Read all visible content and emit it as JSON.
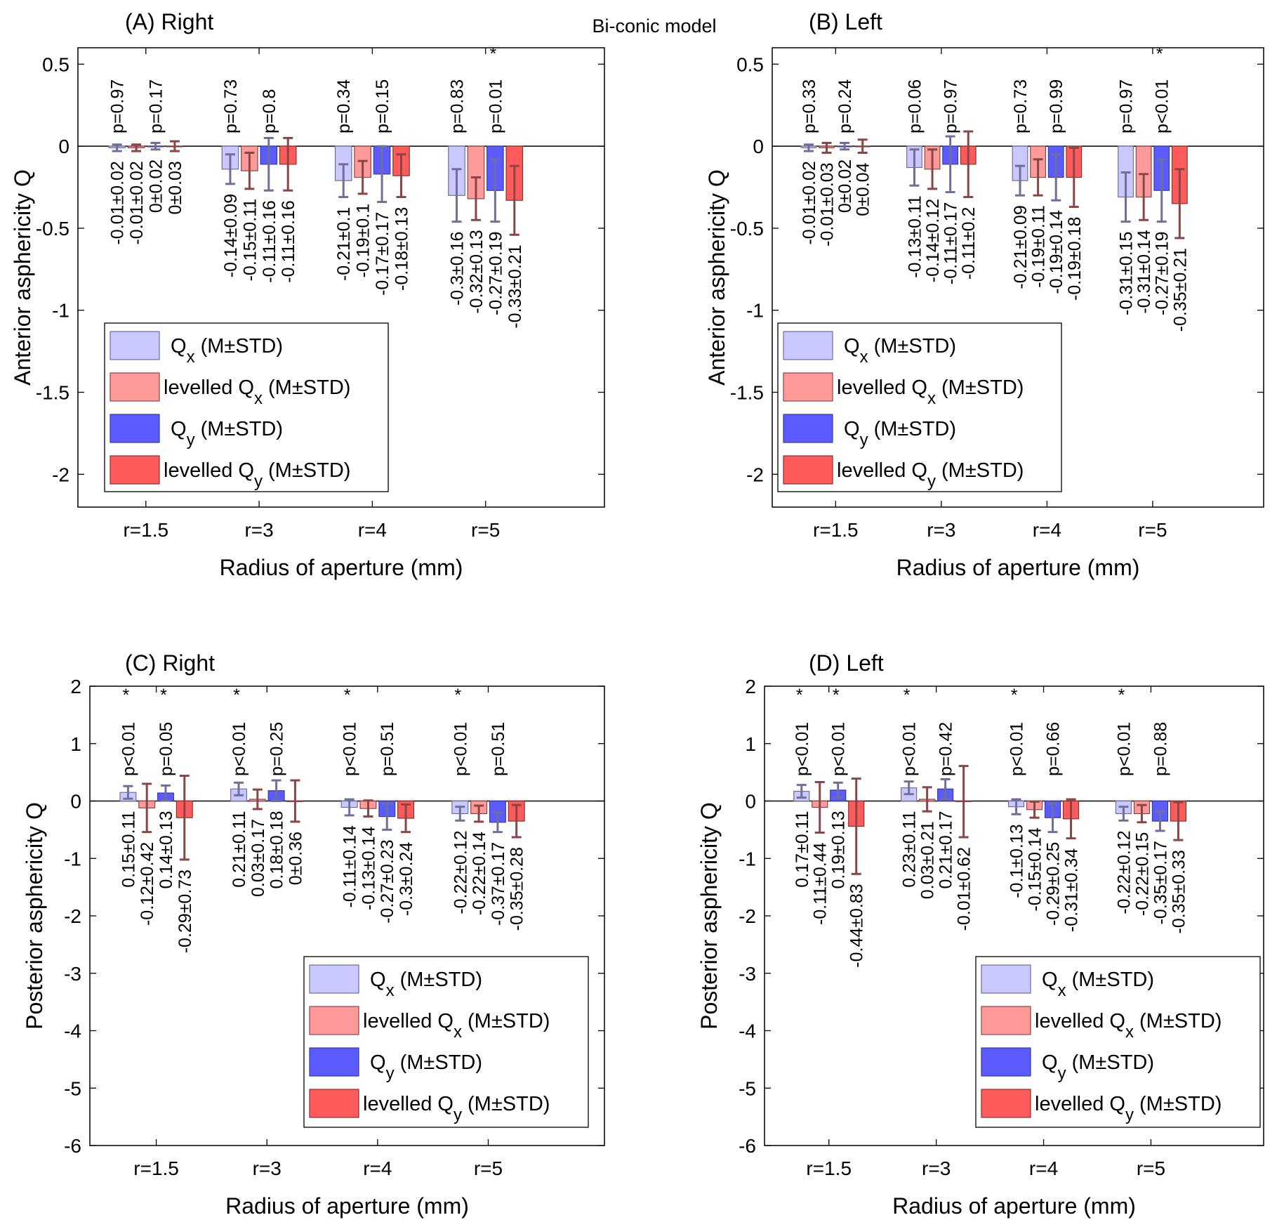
{
  "figure": {
    "title": "Bi-conic model",
    "colors": {
      "qx": "#c9c9ff",
      "lqx": "#ff9a9a",
      "qy": "#5b5bff",
      "lqy": "#ff5b5b",
      "err_x": "#6f6f9a",
      "err_lev": "#8a4545",
      "zero_line": "#000000",
      "frame": "#000000"
    }
  },
  "chart_data": [
    {
      "type": "bar",
      "title": "(A) Right",
      "xlabel": "Radius of aperture (mm)",
      "ylabel": "Anterior asphericity Q",
      "ylim": [
        -2.2,
        0.6
      ],
      "yticks": [
        0.5,
        0,
        -0.5,
        -1,
        -1.5,
        -2
      ],
      "ytick_labels": [
        "0.5",
        "0",
        "-0.5",
        "-1",
        "-1.5",
        "-2"
      ],
      "categories": [
        "r=1.5",
        "r=3",
        "r=4",
        "r=5"
      ],
      "series": [
        {
          "name": "Qx (M±STD)",
          "values": [
            -0.01,
            -0.14,
            -0.21,
            -0.3
          ],
          "std": [
            0.02,
            0.09,
            0.1,
            0.16
          ]
        },
        {
          "name": "levelled Qx (M±STD)",
          "values": [
            -0.01,
            -0.15,
            -0.19,
            -0.32
          ],
          "std": [
            0.02,
            0.11,
            0.1,
            0.13
          ]
        },
        {
          "name": "Qy (M±STD)",
          "values": [
            0,
            -0.11,
            -0.17,
            -0.27
          ],
          "std": [
            0.02,
            0.16,
            0.17,
            0.19
          ]
        },
        {
          "name": "levelled Qy (M±STD)",
          "values": [
            0,
            -0.11,
            -0.18,
            -0.33
          ],
          "std": [
            0.03,
            0.16,
            0.13,
            0.21
          ]
        }
      ],
      "bar_labels": [
        [
          "-0.01±0.02",
          "-0.01±0.02",
          "0±0.02",
          "0±0.03"
        ],
        [
          "-0.14±0.09",
          "-0.15±0.11",
          "-0.11±0.16",
          "-0.11±0.16"
        ],
        [
          "-0.21±0.1",
          "-0.19±0.1",
          "-0.17±0.17",
          "-0.18±0.13"
        ],
        [
          "-0.3±0.16",
          "-0.32±0.13",
          "-0.27±0.19",
          "-0.33±0.21"
        ]
      ],
      "p_values": [
        [
          "p=0.97",
          "p=0.17"
        ],
        [
          "p=0.73",
          "p=0.8"
        ],
        [
          "p=0.34",
          "p=0.15"
        ],
        [
          "p=0.83",
          "p=0.01"
        ]
      ],
      "significant": [
        [
          false,
          false
        ],
        [
          false,
          false
        ],
        [
          false,
          false
        ],
        [
          false,
          true
        ]
      ],
      "star": "*",
      "legend": {
        "placement": "lower-left",
        "entries": [
          {
            "main": "Q",
            "sub": "x",
            "tail": " (M±STD)"
          },
          {
            "main": "levelled Q",
            "sub": "x",
            "tail": " (M±STD)"
          },
          {
            "main": "Q",
            "sub": "y",
            "tail": " (M±STD)"
          },
          {
            "main": "levelled Q",
            "sub": "y",
            "tail": " (M±STD)"
          }
        ]
      }
    },
    {
      "type": "bar",
      "title": "(B) Left",
      "xlabel": "Radius of aperture (mm)",
      "ylabel": "Anterior asphericity Q",
      "ylim": [
        -2.2,
        0.6
      ],
      "yticks": [
        0.5,
        0,
        -0.5,
        -1,
        -1.5,
        -2
      ],
      "ytick_labels": [
        "0.5",
        "0",
        "-0.5",
        "-1",
        "-1.5",
        "-2"
      ],
      "categories": [
        "r=1.5",
        "r=3",
        "r=4",
        "r=5"
      ],
      "series": [
        {
          "name": "Qx (M±STD)",
          "values": [
            -0.01,
            -0.13,
            -0.21,
            -0.31
          ],
          "std": [
            0.02,
            0.11,
            0.09,
            0.15
          ]
        },
        {
          "name": "levelled Qx (M±STD)",
          "values": [
            -0.01,
            -0.14,
            -0.19,
            -0.31
          ],
          "std": [
            0.03,
            0.12,
            0.11,
            0.14
          ]
        },
        {
          "name": "Qy (M±STD)",
          "values": [
            0,
            -0.11,
            -0.19,
            -0.27
          ],
          "std": [
            0.02,
            0.17,
            0.14,
            0.19
          ]
        },
        {
          "name": "levelled Qy (M±STD)",
          "values": [
            0,
            -0.11,
            -0.19,
            -0.35
          ],
          "std": [
            0.04,
            0.2,
            0.18,
            0.21
          ]
        }
      ],
      "bar_labels": [
        [
          "-0.01±0.02",
          "-0.01±0.03",
          "0±0.02",
          "0±0.04"
        ],
        [
          "-0.13±0.11",
          "-0.14±0.12",
          "-0.11±0.17",
          "-0.11±0.2"
        ],
        [
          "-0.21±0.09",
          "-0.19±0.11",
          "-0.19±0.14",
          "-0.19±0.18"
        ],
        [
          "-0.31±0.15",
          "-0.31±0.14",
          "-0.27±0.19",
          "-0.35±0.21"
        ]
      ],
      "p_values": [
        [
          "p=0.33",
          "p=0.24"
        ],
        [
          "p=0.06",
          "p=0.97"
        ],
        [
          "p=0.73",
          "p=0.99"
        ],
        [
          "p=0.97",
          "p<0.01"
        ]
      ],
      "significant": [
        [
          false,
          false
        ],
        [
          false,
          false
        ],
        [
          false,
          false
        ],
        [
          false,
          true
        ]
      ],
      "star": "*",
      "legend": {
        "placement": "lower-left",
        "entries": [
          {
            "main": "Q",
            "sub": "x",
            "tail": " (M±STD)"
          },
          {
            "main": "levelled Q",
            "sub": "x",
            "tail": " (M±STD)"
          },
          {
            "main": "Q",
            "sub": "y",
            "tail": " (M±STD)"
          },
          {
            "main": "levelled Q",
            "sub": "y",
            "tail": " (M±STD)"
          }
        ]
      }
    },
    {
      "type": "bar",
      "title": "(C) Right",
      "xlabel": "Radius of aperture (mm)",
      "ylabel": "Posterior asphericity Q",
      "ylim": [
        -6,
        2
      ],
      "yticks": [
        2,
        1,
        0,
        -1,
        -2,
        -3,
        -4,
        -5,
        -6
      ],
      "ytick_labels": [
        "2",
        "1",
        "0",
        "-1",
        "-2",
        "-3",
        "-4",
        "-5",
        "-6"
      ],
      "categories": [
        "r=1.5",
        "r=3",
        "r=4",
        "r=5"
      ],
      "series": [
        {
          "name": "Qx (M±STD)",
          "values": [
            0.15,
            0.21,
            -0.11,
            -0.22
          ],
          "std": [
            0.11,
            0.11,
            0.14,
            0.12
          ]
        },
        {
          "name": "levelled Qx (M±STD)",
          "values": [
            -0.12,
            0.03,
            -0.13,
            -0.22
          ],
          "std": [
            0.42,
            0.17,
            0.14,
            0.14
          ]
        },
        {
          "name": "Qy (M±STD)",
          "values": [
            0.14,
            0.18,
            -0.27,
            -0.37
          ],
          "std": [
            0.13,
            0.18,
            0.23,
            0.17
          ]
        },
        {
          "name": "levelled Qy (M±STD)",
          "values": [
            -0.29,
            0,
            -0.3,
            -0.35
          ],
          "std": [
            0.73,
            0.36,
            0.24,
            0.28
          ]
        }
      ],
      "bar_labels": [
        [
          "0.15±0.11",
          "-0.12±0.42",
          "0.14±0.13",
          "-0.29±0.73"
        ],
        [
          "0.21±0.11",
          "0.03±0.17",
          "0.18±0.18",
          "0±0.36"
        ],
        [
          "-0.11±0.14",
          "-0.13±0.14",
          "-0.27±0.23",
          "-0.3±0.24"
        ],
        [
          "-0.22±0.12",
          "-0.22±0.14",
          "-0.37±0.17",
          "-0.35±0.28"
        ]
      ],
      "p_values": [
        [
          "p<0.01",
          "p=0.05"
        ],
        [
          "p<0.01",
          "p=0.25"
        ],
        [
          "p<0.01",
          "p=0.51"
        ],
        [
          "p<0.01",
          "p=0.51"
        ]
      ],
      "significant": [
        [
          true,
          true
        ],
        [
          true,
          false
        ],
        [
          true,
          false
        ],
        [
          true,
          false
        ]
      ],
      "star": "*",
      "legend": {
        "placement": "lower-right",
        "entries": [
          {
            "main": "Q",
            "sub": "x",
            "tail": " (M±STD)"
          },
          {
            "main": "levelled Q",
            "sub": "x",
            "tail": " (M±STD)"
          },
          {
            "main": "Q",
            "sub": "y",
            "tail": " (M±STD)"
          },
          {
            "main": "levelled Q",
            "sub": "y",
            "tail": " (M±STD)"
          }
        ]
      }
    },
    {
      "type": "bar",
      "title": "(D) Left",
      "xlabel": "Radius of aperture (mm)",
      "ylabel": "Posterior asphericity Q",
      "ylim": [
        -6,
        2
      ],
      "yticks": [
        2,
        1,
        0,
        -1,
        -2,
        -3,
        -4,
        -5,
        -6
      ],
      "ytick_labels": [
        "2",
        "1",
        "0",
        "-1",
        "-2",
        "-3",
        "-4",
        "-5",
        "-6"
      ],
      "categories": [
        "r=1.5",
        "r=3",
        "r=4",
        "r=5"
      ],
      "series": [
        {
          "name": "Qx (M±STD)",
          "values": [
            0.17,
            0.23,
            -0.1,
            -0.22
          ],
          "std": [
            0.11,
            0.11,
            0.13,
            0.12
          ]
        },
        {
          "name": "levelled Qx (M±STD)",
          "values": [
            -0.11,
            0.03,
            -0.15,
            -0.22
          ],
          "std": [
            0.44,
            0.21,
            0.14,
            0.15
          ]
        },
        {
          "name": "Qy (M±STD)",
          "values": [
            0.19,
            0.21,
            -0.29,
            -0.35
          ],
          "std": [
            0.13,
            0.17,
            0.25,
            0.17
          ]
        },
        {
          "name": "levelled Qy (M±STD)",
          "values": [
            -0.44,
            -0.01,
            -0.31,
            -0.35
          ],
          "std": [
            0.83,
            0.62,
            0.34,
            0.33
          ]
        }
      ],
      "bar_labels": [
        [
          "0.17±0.11",
          "-0.11±0.44",
          "0.19±0.13",
          "-0.44±0.83"
        ],
        [
          "0.23±0.11",
          "0.03±0.21",
          "0.21±0.17",
          "-0.01±0.62"
        ],
        [
          "-0.1±0.13",
          "-0.15±0.14",
          "-0.29±0.25",
          "-0.31±0.34"
        ],
        [
          "-0.22±0.12",
          "-0.22±0.15",
          "-0.35±0.17",
          "-0.35±0.33"
        ]
      ],
      "p_values": [
        [
          "p<0.01",
          "p<0.01"
        ],
        [
          "p<0.01",
          "p=0.42"
        ],
        [
          "p<0.01",
          "p=0.66"
        ],
        [
          "p<0.01",
          "p=0.88"
        ]
      ],
      "significant": [
        [
          true,
          true
        ],
        [
          true,
          false
        ],
        [
          true,
          false
        ],
        [
          true,
          false
        ]
      ],
      "star": "*",
      "legend": {
        "placement": "lower-right",
        "entries": [
          {
            "main": "Q",
            "sub": "x",
            "tail": " (M±STD)"
          },
          {
            "main": "levelled Q",
            "sub": "x",
            "tail": " (M±STD)"
          },
          {
            "main": "Q",
            "sub": "y",
            "tail": " (M±STD)"
          },
          {
            "main": "levelled Q",
            "sub": "y",
            "tail": " (M±STD)"
          }
        ]
      }
    }
  ]
}
